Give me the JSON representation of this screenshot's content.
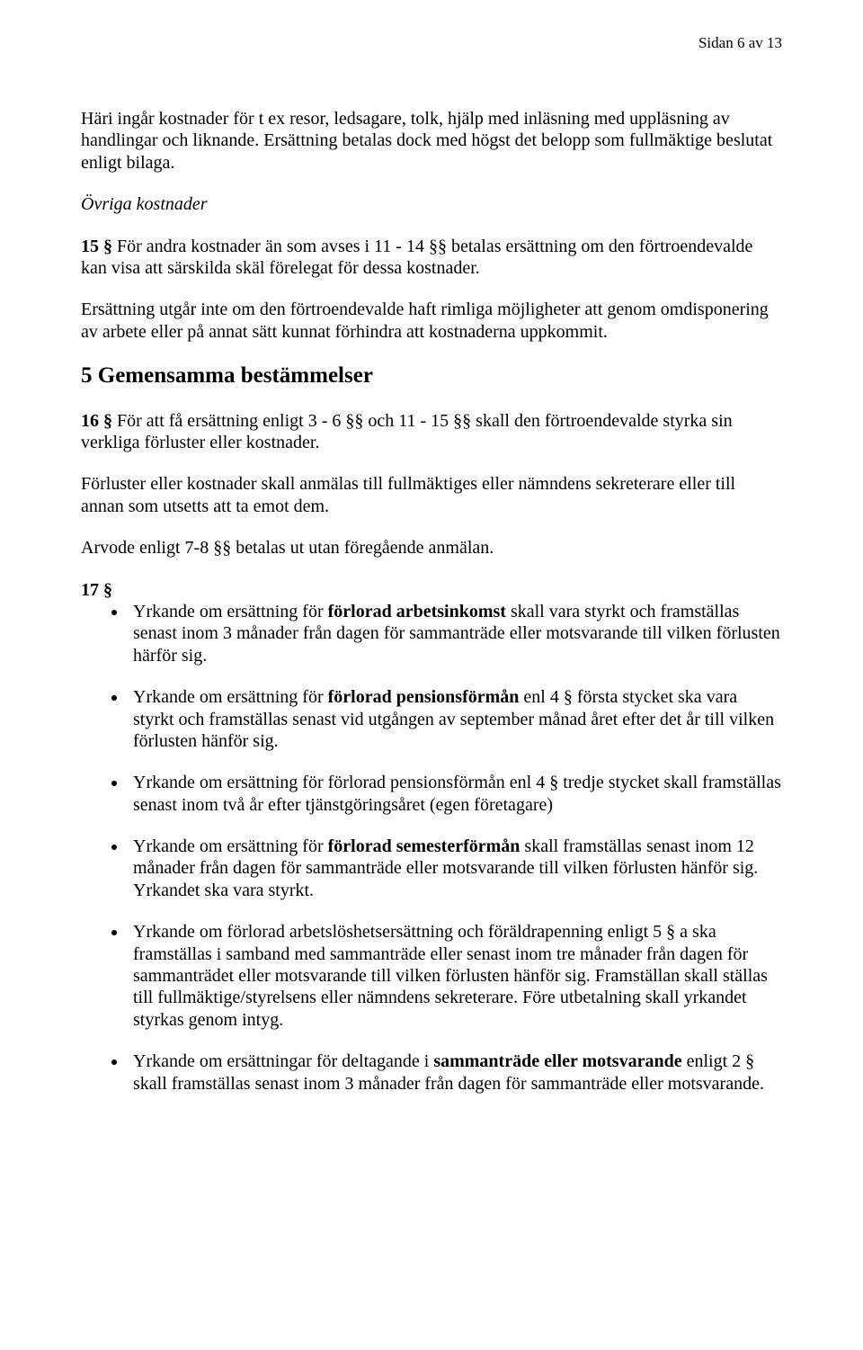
{
  "page_number": "Sidan 6 av 13",
  "p1": "Häri ingår kostnader för t ex resor, ledsagare, tolk, hjälp med inläsning med uppläsning av handlingar och liknande. Ersättning betalas dock med högst det belopp som fullmäktige beslutat enligt bilaga.",
  "h_ovriga": "Övriga kostnader",
  "p15_label": "15 §",
  "p15_text": " För andra kostnader än som avses i 11 - 14 §§ betalas ersättning om den förtroendevalde kan visa att särskilda skäl förelegat för dessa kostnader.",
  "p_ers": "Ersättning utgår inte om den förtroendevalde haft rimliga möjligheter att genom omdisponering av arbete eller på annat sätt kunnat förhindra att kostnaderna uppkommit.",
  "h5": "5 Gemensamma bestämmelser",
  "p16_label": "16 §",
  "p16_text": " För att få ersättning enligt 3 - 6 §§ och 11 - 15 §§  skall den förtroendevalde styrka sin verkliga förluster eller kostnader.",
  "p_forluster": "Förluster eller kostnader skall anmälas till fullmäktiges eller nämndens sekreterare eller till annan som utsetts att ta emot dem.",
  "p_arvode": "Arvode enligt 7-8 §§ betalas ut utan föregående anmälan.",
  "p17_label": "17 §",
  "bullets": {
    "b1_pre": "Yrkande om ersättning för ",
    "b1_bold": "förlorad arbetsinkomst",
    "b1_post": " skall vara styrkt och framställas senast inom 3 månader från dagen för sammanträde eller motsvarande till vilken förlusten härför sig.",
    "b2_pre": "Yrkande om ersättning för ",
    "b2_bold": "förlorad pensionsförmån",
    "b2_post": " enl 4 § första stycket ska vara styrkt och framställas senast vid utgången av september månad året efter det år till vilken förlusten hänför sig.",
    "b3": "Yrkande om ersättning för förlorad pensionsförmån enl 4 § tredje stycket skall framställas senast inom två år efter tjänstgöringsåret (egen företagare)",
    "b4_pre": "Yrkande om ersättning för ",
    "b4_bold": "förlorad semesterförmån",
    "b4_post": " skall framställas senast inom 12 månader från dagen för sammanträde eller motsvarande till vilken förlusten hänför sig. Yrkandet ska vara styrkt.",
    "b5": "Yrkande om förlorad arbetslöshetsersättning och föräldrapenning enligt 5 § a  ska framställas i samband med sammanträde eller senast inom tre månader från dagen för sammanträdet eller motsvarande till vilken förlusten hänför sig. Framställan skall ställas till fullmäktige/styrelsens eller nämndens sekreterare. Före utbetalning skall yrkandet styrkas genom intyg.",
    "b6_pre": "Yrkande om ersättningar för deltagande i ",
    "b6_bold": "sammanträde eller motsvarande",
    "b6_post": " enligt 2 § skall framställas senast inom 3 månader från dagen för sammanträde eller motsvarande."
  }
}
